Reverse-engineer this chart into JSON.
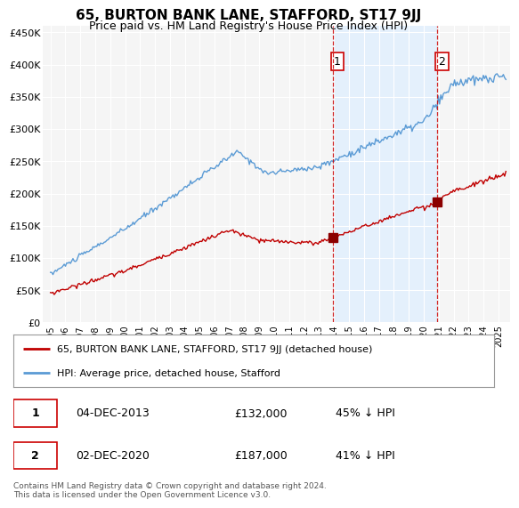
{
  "title": "65, BURTON BANK LANE, STAFFORD, ST17 9JJ",
  "subtitle": "Price paid vs. HM Land Registry's House Price Index (HPI)",
  "ylabel_ticks": [
    "£0",
    "£50K",
    "£100K",
    "£150K",
    "£200K",
    "£250K",
    "£300K",
    "£350K",
    "£400K",
    "£450K"
  ],
  "ytick_values": [
    0,
    50000,
    100000,
    150000,
    200000,
    250000,
    300000,
    350000,
    400000,
    450000
  ],
  "ylim": [
    0,
    460000
  ],
  "hpi_color": "#5b9bd5",
  "price_color": "#c00000",
  "marker1_date": 2013.92,
  "marker1_price": 132000,
  "marker2_date": 2020.92,
  "marker2_price": 187000,
  "legend_label1": "65, BURTON BANK LANE, STAFFORD, ST17 9JJ (detached house)",
  "legend_label2": "HPI: Average price, detached house, Stafford",
  "note1_date": "04-DEC-2013",
  "note1_price": "£132,000",
  "note1_pct": "45% ↓ HPI",
  "note2_date": "02-DEC-2020",
  "note2_price": "£187,000",
  "note2_pct": "41% ↓ HPI",
  "footer": "Contains HM Land Registry data © Crown copyright and database right 2024.\nThis data is licensed under the Open Government Licence v3.0.",
  "bg_color": "#ffffff",
  "plot_bg_color": "#f5f5f5",
  "highlight_bg_color": "#ddeeff",
  "grid_color": "#ffffff",
  "dashed_vline_color": "#cc0000"
}
